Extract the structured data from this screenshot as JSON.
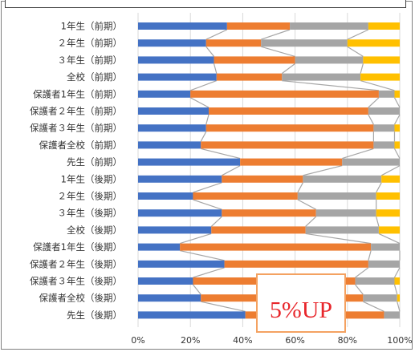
{
  "chart_data": {
    "type": "bar",
    "orientation": "horizontal",
    "stacked": "percent",
    "series_lines": true,
    "categories": [
      "1年生（前期）",
      "２年生（前期）",
      "３年生（前期）",
      "全校（前期）",
      "保護者1年生（前期）",
      "保護者２年生（前期）",
      "保護者３年生（前期）",
      "保護者全校（前期）",
      "先生（前期）",
      "1年生（後期）",
      "２年生（後期）",
      "３年生（後期）",
      "全校（後期）",
      "保護者1年生（後期）",
      "保護者２年生（後期）",
      "保護者３年生（後期）",
      "保護者全校（後期）",
      "先生（後期）"
    ],
    "series": [
      {
        "color": "#4472c4",
        "values": [
          34,
          26,
          29,
          30,
          20,
          27,
          26,
          24,
          39,
          32,
          21,
          32,
          28,
          16,
          33,
          21,
          24,
          41
        ]
      },
      {
        "color": "#ed7d31",
        "values": [
          24,
          21,
          31,
          25,
          72,
          61,
          64,
          66,
          39,
          31,
          40,
          36,
          36,
          73,
          55,
          62,
          62,
          53
        ]
      },
      {
        "color": "#a5a5a5",
        "values": [
          30,
          33,
          26,
          30,
          6,
          12,
          8,
          8,
          22,
          30,
          30,
          23,
          28,
          11,
          12,
          15,
          13,
          6
        ]
      },
      {
        "color": "#ffc000",
        "values": [
          12,
          20,
          14,
          15,
          2,
          0,
          2,
          2,
          0,
          7,
          9,
          9,
          8,
          0,
          0,
          2,
          1,
          0
        ]
      }
    ],
    "xaxis": {
      "ticks": [
        "0%",
        "20%",
        "40%",
        "60%",
        "80%",
        "100%"
      ],
      "range": [
        0,
        100
      ]
    },
    "grid": true,
    "annotation": {
      "text": "5%UP",
      "color": "#e8262b",
      "border_color": "#f4a261"
    }
  }
}
